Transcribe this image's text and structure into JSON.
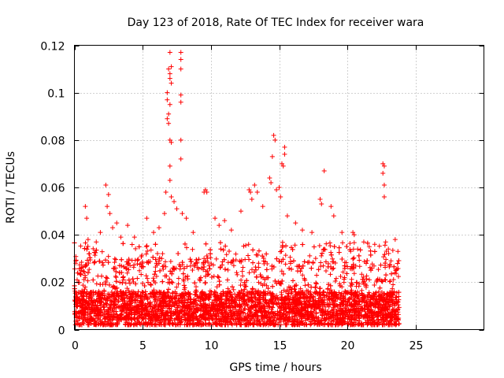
{
  "chart_data": {
    "type": "scatter",
    "title": "Day 123 of 2018, Rate Of TEC Index for receiver wara",
    "xlabel": "GPS time / hours",
    "ylabel": "ROTI / TECUs",
    "xlim": [
      0,
      30
    ],
    "ylim": [
      0,
      0.12
    ],
    "x_ticks": [
      0,
      5,
      10,
      15,
      20,
      25
    ],
    "x_tick_labels": [
      "0",
      "5",
      "10",
      "15",
      "20",
      "25"
    ],
    "y_ticks": [
      0,
      0.02,
      0.04,
      0.06,
      0.08,
      0.1,
      0.12
    ],
    "y_tick_labels": [
      "0",
      "0.02",
      "0.04",
      "0.06",
      "0.08",
      "0.1",
      "0.12"
    ],
    "grid": true,
    "marker": "+",
    "marker_color": "#ff0000",
    "dense_cloud": {
      "x_range": [
        0,
        23.8
      ],
      "y_core_range": [
        0.002,
        0.03
      ],
      "note": "thousands of ROTI samples forming a dense band below ~0.035 TECU/s"
    },
    "series": [
      {
        "name": "ROTI",
        "points": [
          [
            0.1,
            0.029
          ],
          [
            0.1,
            0.028
          ],
          [
            0.2,
            0.021
          ],
          [
            0.8,
            0.052
          ],
          [
            0.9,
            0.047
          ],
          [
            1.0,
            0.038
          ],
          [
            1.1,
            0.032
          ],
          [
            1.6,
            0.037
          ],
          [
            1.9,
            0.041
          ],
          [
            2.3,
            0.061
          ],
          [
            2.4,
            0.052
          ],
          [
            2.5,
            0.057
          ],
          [
            2.6,
            0.049
          ],
          [
            2.8,
            0.043
          ],
          [
            3.1,
            0.045
          ],
          [
            3.4,
            0.039
          ],
          [
            3.9,
            0.044
          ],
          [
            4.4,
            0.039
          ],
          [
            5.3,
            0.047
          ],
          [
            5.8,
            0.041
          ],
          [
            6.2,
            0.043
          ],
          [
            6.6,
            0.049
          ],
          [
            6.7,
            0.058
          ],
          [
            6.8,
            0.1
          ],
          [
            6.8,
            0.097
          ],
          [
            6.8,
            0.089
          ],
          [
            6.9,
            0.087
          ],
          [
            6.9,
            0.11
          ],
          [
            6.9,
            0.091
          ],
          [
            7.0,
            0.117
          ],
          [
            7.0,
            0.108
          ],
          [
            7.0,
            0.106
          ],
          [
            7.0,
            0.095
          ],
          [
            7.0,
            0.08
          ],
          [
            7.0,
            0.069
          ],
          [
            7.0,
            0.063
          ],
          [
            7.1,
            0.111
          ],
          [
            7.1,
            0.104
          ],
          [
            7.1,
            0.079
          ],
          [
            7.1,
            0.056
          ],
          [
            7.3,
            0.054
          ],
          [
            7.5,
            0.051
          ],
          [
            7.8,
            0.117
          ],
          [
            7.8,
            0.114
          ],
          [
            7.8,
            0.11
          ],
          [
            7.8,
            0.099
          ],
          [
            7.8,
            0.096
          ],
          [
            7.8,
            0.08
          ],
          [
            7.8,
            0.072
          ],
          [
            7.9,
            0.049
          ],
          [
            8.2,
            0.047
          ],
          [
            8.7,
            0.041
          ],
          [
            9.5,
            0.058
          ],
          [
            9.6,
            0.059
          ],
          [
            9.7,
            0.058
          ],
          [
            10.3,
            0.047
          ],
          [
            10.6,
            0.044
          ],
          [
            11.0,
            0.046
          ],
          [
            11.5,
            0.042
          ],
          [
            12.2,
            0.05
          ],
          [
            12.8,
            0.059
          ],
          [
            12.9,
            0.058
          ],
          [
            13.0,
            0.055
          ],
          [
            13.2,
            0.061
          ],
          [
            13.4,
            0.058
          ],
          [
            13.8,
            0.052
          ],
          [
            14.3,
            0.064
          ],
          [
            14.4,
            0.062
          ],
          [
            14.5,
            0.073
          ],
          [
            14.6,
            0.082
          ],
          [
            14.7,
            0.08
          ],
          [
            14.8,
            0.059
          ],
          [
            15.0,
            0.06
          ],
          [
            15.1,
            0.056
          ],
          [
            15.2,
            0.07
          ],
          [
            15.3,
            0.069
          ],
          [
            15.4,
            0.077
          ],
          [
            15.4,
            0.074
          ],
          [
            15.6,
            0.048
          ],
          [
            16.2,
            0.045
          ],
          [
            16.7,
            0.042
          ],
          [
            17.4,
            0.041
          ],
          [
            18.0,
            0.055
          ],
          [
            18.1,
            0.053
          ],
          [
            18.3,
            0.067
          ],
          [
            18.8,
            0.052
          ],
          [
            19.0,
            0.048
          ],
          [
            19.6,
            0.041
          ],
          [
            20.4,
            0.041
          ],
          [
            20.5,
            0.04
          ],
          [
            21.2,
            0.037
          ],
          [
            21.6,
            0.035
          ],
          [
            22.0,
            0.036
          ],
          [
            22.6,
            0.07
          ],
          [
            22.6,
            0.066
          ],
          [
            22.7,
            0.069
          ],
          [
            22.7,
            0.061
          ],
          [
            22.7,
            0.056
          ],
          [
            22.8,
            0.037
          ],
          [
            23.0,
            0.034
          ],
          [
            23.5,
            0.038
          ],
          [
            23.7,
            0.033
          ]
        ]
      }
    ]
  }
}
